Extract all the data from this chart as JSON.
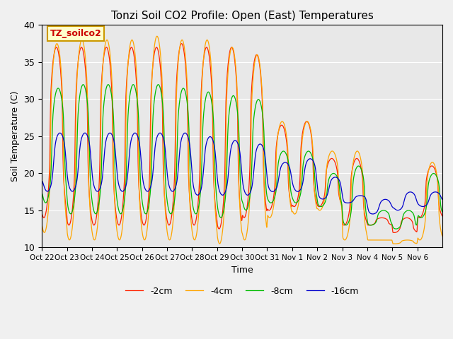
{
  "title": "Tonzi Soil CO2 Profile: Open (East) Temperatures",
  "xlabel": "Time",
  "ylabel": "Soil Temperature (C)",
  "ylim": [
    10,
    40
  ],
  "legend_label": "TZ_soilco2",
  "series_labels": [
    "-2cm",
    "-4cm",
    "-8cm",
    "-16cm"
  ],
  "series_colors": [
    "#ff2200",
    "#ffa500",
    "#00bb00",
    "#0000cc"
  ],
  "xtick_labels": [
    "Oct 22",
    "Oct 23",
    "Oct 24",
    "Oct 25",
    "Oct 26",
    "Oct 27",
    "Oct 28",
    "Oct 29",
    "Oct 30",
    "Oct 31",
    "Nov 1",
    "Nov 2",
    "Nov 3",
    "Nov 4",
    "Nov 5",
    "Nov 6"
  ],
  "n_days": 16
}
